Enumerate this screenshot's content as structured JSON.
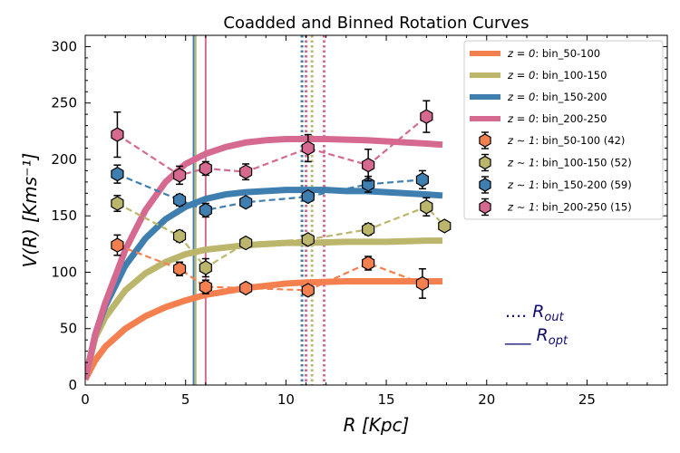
{
  "chart_data": {
    "type": "line",
    "title": "Coadded and Binned Rotation Curves",
    "xlabel": "R [Kpc]",
    "ylabel": "V(R) [Kms⁻¹]",
    "xlim": [
      0,
      29
    ],
    "ylim": [
      0,
      310
    ],
    "xticks": [
      0,
      5,
      10,
      15,
      20,
      25
    ],
    "yticks": [
      0,
      50,
      100,
      150,
      200,
      250,
      300
    ],
    "model_curves": [
      {
        "name": "z = 0: bin_50-100",
        "color": "#f4804f",
        "x": [
          0,
          0.5,
          1,
          2,
          3,
          4,
          5,
          6,
          7,
          8,
          9,
          10,
          11,
          12,
          13,
          14,
          15,
          16,
          17,
          17.8
        ],
        "y": [
          5,
          22,
          34,
          50,
          61,
          69,
          75,
          80,
          83,
          86,
          88,
          90,
          91,
          91.5,
          92,
          92,
          92,
          92,
          92,
          92
        ]
      },
      {
        "name": "z = 0: bin_100-150",
        "color": "#bcb66c",
        "x": [
          0,
          0.5,
          1,
          2,
          3,
          4,
          5,
          6,
          7,
          8,
          9,
          10,
          11,
          12,
          13,
          14,
          15,
          16,
          17,
          17.8
        ],
        "y": [
          5,
          42,
          60,
          84,
          99,
          109,
          116,
          120,
          122,
          124,
          125,
          126,
          126,
          126.5,
          127,
          127,
          127,
          127.5,
          128,
          128
        ]
      },
      {
        "name": "z = 0: bin_150-200",
        "color": "#3f7fb0",
        "x": [
          0,
          0.5,
          1,
          2,
          3,
          4,
          5,
          6,
          7,
          8,
          9,
          10,
          11,
          12,
          13,
          14,
          15,
          16,
          17,
          17.8
        ],
        "y": [
          5,
          45,
          70,
          106,
          130,
          147,
          158,
          165,
          169,
          171,
          172,
          173,
          173,
          173,
          172,
          172,
          171,
          170,
          169,
          168
        ]
      },
      {
        "name": "z = 0: bin_200-250",
        "color": "#d6698f",
        "x": [
          0,
          0.5,
          1,
          2,
          3,
          4,
          5,
          6,
          7,
          8,
          9,
          10,
          11,
          12,
          13,
          14,
          15,
          16,
          17,
          17.8
        ],
        "y": [
          5,
          45,
          73,
          120,
          155,
          180,
          196,
          205,
          211,
          215,
          217,
          218,
          218,
          218,
          217.5,
          217,
          216,
          215,
          214,
          213
        ]
      }
    ],
    "binned_points": [
      {
        "name": "z ~ 1: bin_50-100 (42)",
        "color": "#f4804f",
        "x": [
          1.6,
          4.7,
          6.0,
          8.0,
          11.1,
          14.1,
          16.8
        ],
        "y": [
          124,
          103,
          87,
          86,
          84,
          108,
          90
        ],
        "err": [
          9,
          6,
          6,
          4,
          4,
          6,
          13
        ]
      },
      {
        "name": "z ~ 1: bin_100-150 (52)",
        "color": "#bcb66c",
        "x": [
          1.6,
          4.7,
          6.0,
          8.0,
          11.1,
          14.1,
          17.0,
          17.9
        ],
        "y": [
          161,
          132,
          104,
          126,
          129,
          138,
          158,
          141
        ],
        "err": [
          7,
          5,
          8,
          4,
          4,
          5,
          8,
          0
        ]
      },
      {
        "name": "z ~ 1: bin_150-200 (59)",
        "color": "#3f7fb0",
        "x": [
          1.6,
          4.7,
          6.0,
          8.0,
          11.1,
          14.1,
          16.8
        ],
        "y": [
          187,
          164,
          155,
          162,
          167,
          178,
          182
        ],
        "err": [
          8,
          5,
          6,
          4,
          4,
          7,
          8
        ]
      },
      {
        "name": "z ~ 1: bin_200-250 (15)",
        "color": "#d6698f",
        "x": [
          1.6,
          4.7,
          6.0,
          8.0,
          11.1,
          14.1,
          17.0
        ],
        "y": [
          222,
          186,
          192,
          189,
          210,
          195,
          238
        ],
        "err": [
          20,
          8,
          6,
          7,
          12,
          14,
          14
        ]
      }
    ],
    "r_opt_lines": [
      {
        "x": 5.4,
        "color": "#3f7fb0"
      },
      {
        "x": 5.5,
        "color": "#bcb66c"
      },
      {
        "x": 6.0,
        "color": "#d6698f"
      }
    ],
    "r_out_lines": [
      {
        "x": 10.8,
        "color": "#3f7fb0"
      },
      {
        "x": 11.0,
        "color": "#d6698f"
      },
      {
        "x": 11.3,
        "color": "#bcb66c"
      },
      {
        "x": 11.9,
        "color": "#d6698f"
      }
    ],
    "annotations": {
      "r_out": "…… R_out",
      "r_opt": "___ R_opt",
      "r_out_line": "....",
      "r_opt_line": "___",
      "r_out_sub": "out",
      "r_opt_sub": "opt",
      "r_letter": "R",
      "color": "#0d0d70"
    },
    "legend_position": "top-right"
  }
}
